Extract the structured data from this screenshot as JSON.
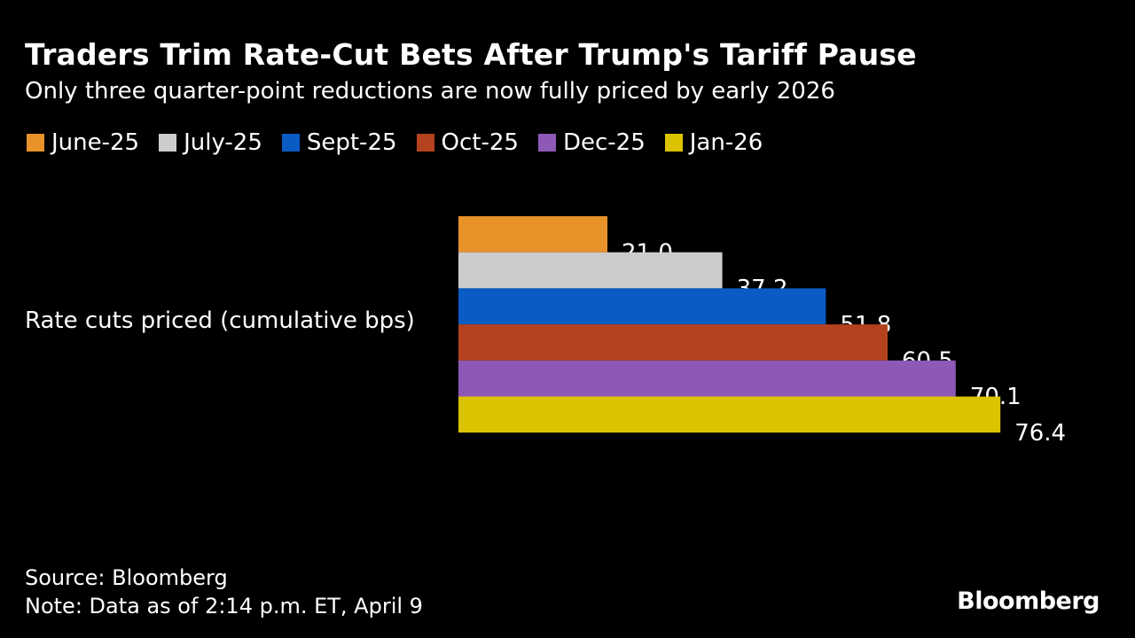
{
  "title": "Traders Trim Rate-Cut Bets After Trump's Tariff Pause",
  "subtitle": "Only three quarter-point reductions are now fully priced by early 2026",
  "source": "Source: Bloomberg",
  "note": "Note: Data as of 2:14 p.m. ET, April 9",
  "logo": "Bloomberg",
  "chart_data": {
    "type": "bar",
    "orientation": "horizontal",
    "categories": [
      "Rate cuts priced (cumulative bps)"
    ],
    "series": [
      {
        "name": "June-25",
        "values": [
          21.0
        ],
        "color": "#e8922a",
        "label": "21.0"
      },
      {
        "name": "July-25",
        "values": [
          37.2
        ],
        "color": "#cccccc",
        "label": "37.2"
      },
      {
        "name": "Sept-25",
        "values": [
          51.8
        ],
        "color": "#0a5bc4",
        "label": "51.8"
      },
      {
        "name": "Oct-25",
        "values": [
          60.5
        ],
        "color": "#b5421f",
        "label": "60.5"
      },
      {
        "name": "Dec-25",
        "values": [
          70.1
        ],
        "color": "#8e58b7",
        "label": "70.1"
      },
      {
        "name": "Jan-26",
        "values": [
          76.4
        ],
        "color": "#dcc300",
        "label": "76.4"
      }
    ],
    "legend": "top-left",
    "grid": false,
    "xlim": [
      0,
      76.4
    ]
  }
}
